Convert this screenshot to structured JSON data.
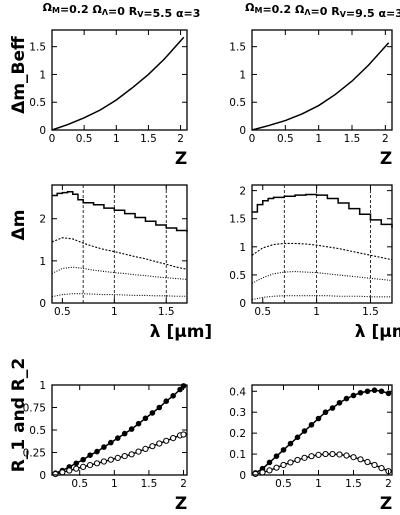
{
  "figure": {
    "row_ylabels": [
      "Δm_Beff",
      "Δm",
      "R_1 and R_2"
    ]
  },
  "chart_data": [
    {
      "id": "top-left",
      "type": "line",
      "title": "Ω_M=0.2 Ω_Λ=0 R_V=5.5 α=3",
      "xlabel": "Z",
      "ylabel": "Δm_Beff",
      "xlim": [
        0,
        2.1
      ],
      "ylim": [
        0,
        1.8
      ],
      "xticks": [
        0,
        0.5,
        1,
        1.5,
        2
      ],
      "xticklabels": [
        "0",
        "0.5",
        "1",
        "1.5",
        "2"
      ],
      "yticks": [
        0,
        0.5,
        1,
        1.5
      ],
      "yticklabels": [
        "0",
        "0.5",
        "1",
        "1.5"
      ],
      "series": [
        {
          "style": "solid",
          "x": [
            0,
            0.25,
            0.5,
            0.75,
            1.0,
            1.25,
            1.5,
            1.75,
            2.05
          ],
          "y": [
            0,
            0.1,
            0.22,
            0.36,
            0.54,
            0.76,
            1.0,
            1.28,
            1.67
          ]
        }
      ]
    },
    {
      "id": "top-right",
      "type": "line",
      "title": "Ω_M=0.2 Ω_Λ=0 R_V=9.5 α=3",
      "xlabel": "Z",
      "ylabel": "",
      "xlim": [
        0,
        2.1
      ],
      "ylim": [
        0,
        1.8
      ],
      "xticks": [
        0,
        0.5,
        1,
        1.5,
        2
      ],
      "xticklabels": [
        "0",
        "0.5",
        "1",
        "1.5",
        "2"
      ],
      "yticks": [
        0,
        0.5,
        1,
        1.5
      ],
      "yticklabels": [
        "0",
        "0.5",
        "1",
        "1.5"
      ],
      "series": [
        {
          "style": "solid",
          "x": [
            0,
            0.25,
            0.5,
            0.75,
            1.0,
            1.25,
            1.5,
            1.75,
            2.05
          ],
          "y": [
            0,
            0.08,
            0.17,
            0.29,
            0.44,
            0.64,
            0.88,
            1.17,
            1.57
          ]
        }
      ]
    },
    {
      "id": "middle-left",
      "type": "line",
      "xlabel": "λ [μm]",
      "ylabel": "Δm",
      "xlim": [
        0.4,
        1.7
      ],
      "ylim": [
        0,
        2.8
      ],
      "xticks": [
        0.5,
        1,
        1.5
      ],
      "xticklabels": [
        "0.5",
        "1",
        "1.5"
      ],
      "yticks": [
        0,
        1,
        2
      ],
      "yticklabels": [
        "0",
        "1",
        "2"
      ],
      "vlines": [
        0.7,
        1.0,
        1.5
      ],
      "series": [
        {
          "style": "solid-step",
          "x": [
            0.4,
            0.45,
            0.5,
            0.55,
            0.6,
            0.65,
            0.7,
            0.8,
            0.9,
            1.0,
            1.1,
            1.2,
            1.3,
            1.4,
            1.5,
            1.6,
            1.7
          ],
          "y": [
            2.55,
            2.6,
            2.62,
            2.64,
            2.58,
            2.45,
            2.38,
            2.33,
            2.25,
            2.2,
            2.12,
            2.03,
            1.94,
            1.85,
            1.78,
            1.72,
            1.68
          ]
        },
        {
          "style": "dashed",
          "x": [
            0.4,
            0.5,
            0.6,
            0.7,
            0.8,
            0.9,
            1.0,
            1.1,
            1.2,
            1.3,
            1.4,
            1.5,
            1.6,
            1.7
          ],
          "y": [
            1.45,
            1.55,
            1.52,
            1.42,
            1.34,
            1.27,
            1.22,
            1.16,
            1.1,
            1.05,
            0.98,
            0.92,
            0.85,
            0.8
          ]
        },
        {
          "style": "dotted",
          "x": [
            0.4,
            0.5,
            0.6,
            0.7,
            0.8,
            0.9,
            1.0,
            1.1,
            1.2,
            1.3,
            1.4,
            1.5,
            1.6,
            1.7
          ],
          "y": [
            0.7,
            0.82,
            0.85,
            0.82,
            0.78,
            0.75,
            0.72,
            0.7,
            0.67,
            0.65,
            0.62,
            0.6,
            0.58,
            0.56
          ]
        },
        {
          "style": "dotted",
          "x": [
            0.4,
            0.5,
            0.6,
            0.7,
            0.8,
            0.9,
            1.0,
            1.1,
            1.2,
            1.3,
            1.4,
            1.5,
            1.6,
            1.7
          ],
          "y": [
            0.15,
            0.2,
            0.22,
            0.22,
            0.21,
            0.2,
            0.2,
            0.19,
            0.18,
            0.18,
            0.17,
            0.17,
            0.16,
            0.16
          ]
        }
      ]
    },
    {
      "id": "middle-right",
      "type": "line",
      "xlabel": "λ [μm]",
      "ylabel": "",
      "xlim": [
        0.4,
        1.7
      ],
      "ylim": [
        0,
        2.1
      ],
      "xticks": [
        0.5,
        1,
        1.5
      ],
      "xticklabels": [
        "0.5",
        "1",
        "1.5"
      ],
      "yticks": [
        0,
        0.5,
        1,
        1.5,
        2
      ],
      "yticklabels": [
        "0",
        "0.5",
        "1",
        "1.5",
        "2"
      ],
      "vlines": [
        0.7,
        1.0,
        1.5
      ],
      "series": [
        {
          "style": "solid-step",
          "x": [
            0.4,
            0.45,
            0.5,
            0.55,
            0.6,
            0.7,
            0.8,
            0.9,
            1.0,
            1.1,
            1.2,
            1.3,
            1.4,
            1.5,
            1.6,
            1.7
          ],
          "y": [
            1.62,
            1.75,
            1.82,
            1.86,
            1.88,
            1.9,
            1.92,
            1.93,
            1.92,
            1.86,
            1.78,
            1.68,
            1.58,
            1.48,
            1.4,
            1.34
          ]
        },
        {
          "style": "dashed",
          "x": [
            0.4,
            0.5,
            0.6,
            0.7,
            0.8,
            0.9,
            1.0,
            1.1,
            1.2,
            1.3,
            1.4,
            1.5,
            1.6,
            1.7
          ],
          "y": [
            0.85,
            0.98,
            1.04,
            1.06,
            1.06,
            1.05,
            1.03,
            1.0,
            0.97,
            0.93,
            0.89,
            0.85,
            0.81,
            0.77
          ]
        },
        {
          "style": "dotted",
          "x": [
            0.4,
            0.5,
            0.6,
            0.7,
            0.8,
            0.9,
            1.0,
            1.1,
            1.2,
            1.3,
            1.4,
            1.5,
            1.6,
            1.7
          ],
          "y": [
            0.35,
            0.45,
            0.52,
            0.55,
            0.56,
            0.55,
            0.54,
            0.52,
            0.5,
            0.48,
            0.46,
            0.44,
            0.42,
            0.4
          ]
        },
        {
          "style": "dotted",
          "x": [
            0.4,
            0.5,
            0.6,
            0.7,
            0.8,
            0.9,
            1.0,
            1.1,
            1.2,
            1.3,
            1.4,
            1.5,
            1.6,
            1.7
          ],
          "y": [
            0.06,
            0.1,
            0.12,
            0.13,
            0.13,
            0.13,
            0.13,
            0.13,
            0.12,
            0.12,
            0.12,
            0.11,
            0.11,
            0.11
          ]
        }
      ]
    },
    {
      "id": "bottom-left",
      "type": "line",
      "xlabel": "Z",
      "ylabel": "R_1 and R_2",
      "xlim": [
        0.1,
        2.05
      ],
      "ylim": [
        0,
        1.0
      ],
      "xticks": [
        0.5,
        1,
        1.5,
        2
      ],
      "xticklabels": [
        "0.5",
        "1",
        "1.5",
        "2"
      ],
      "yticks": [
        0,
        0.25,
        0.5,
        0.75,
        1
      ],
      "yticklabels": [
        "0",
        "0.25",
        "0.5",
        "0.75",
        "1"
      ],
      "series": [
        {
          "style": "solid",
          "marker": "filled",
          "x": [
            0.15,
            0.25,
            0.35,
            0.45,
            0.55,
            0.65,
            0.75,
            0.85,
            0.95,
            1.05,
            1.15,
            1.25,
            1.35,
            1.45,
            1.55,
            1.65,
            1.75,
            1.85,
            1.95,
            2.0
          ],
          "y": [
            0.02,
            0.05,
            0.09,
            0.13,
            0.17,
            0.22,
            0.26,
            0.31,
            0.36,
            0.41,
            0.46,
            0.51,
            0.57,
            0.63,
            0.69,
            0.75,
            0.82,
            0.88,
            0.95,
            0.99
          ]
        },
        {
          "style": "solid",
          "marker": "open",
          "x": [
            0.15,
            0.25,
            0.35,
            0.45,
            0.55,
            0.65,
            0.75,
            0.85,
            0.95,
            1.05,
            1.15,
            1.25,
            1.35,
            1.45,
            1.55,
            1.65,
            1.75,
            1.85,
            1.95,
            2.0
          ],
          "y": [
            0.01,
            0.03,
            0.05,
            0.07,
            0.09,
            0.11,
            0.13,
            0.15,
            0.17,
            0.19,
            0.21,
            0.23,
            0.26,
            0.29,
            0.32,
            0.35,
            0.38,
            0.41,
            0.44,
            0.45
          ]
        }
      ]
    },
    {
      "id": "bottom-right",
      "type": "line",
      "xlabel": "Z",
      "ylabel": "",
      "xlim": [
        0.05,
        2.05
      ],
      "ylim": [
        0,
        0.43
      ],
      "xticks": [
        0.5,
        1,
        1.5,
        2
      ],
      "xticklabels": [
        "0.5",
        "1",
        "1.5",
        "2"
      ],
      "yticks": [
        0,
        0.1,
        0.2,
        0.3,
        0.4
      ],
      "yticklabels": [
        "0",
        "0.1",
        "0.2",
        "0.3",
        "0.4"
      ],
      "series": [
        {
          "style": "solid",
          "marker": "filled",
          "x": [
            0.1,
            0.2,
            0.3,
            0.4,
            0.5,
            0.6,
            0.7,
            0.8,
            0.9,
            1.0,
            1.1,
            1.2,
            1.3,
            1.4,
            1.5,
            1.6,
            1.7,
            1.8,
            1.9,
            2.0
          ],
          "y": [
            0.01,
            0.03,
            0.06,
            0.09,
            0.12,
            0.15,
            0.18,
            0.21,
            0.24,
            0.27,
            0.3,
            0.32,
            0.345,
            0.365,
            0.38,
            0.393,
            0.4,
            0.405,
            0.4,
            0.39
          ]
        },
        {
          "style": "solid",
          "marker": "open",
          "x": [
            0.1,
            0.2,
            0.3,
            0.4,
            0.5,
            0.6,
            0.7,
            0.8,
            0.9,
            1.0,
            1.1,
            1.2,
            1.3,
            1.4,
            1.5,
            1.6,
            1.7,
            1.8,
            1.9,
            2.0
          ],
          "y": [
            0.005,
            0.012,
            0.022,
            0.035,
            0.048,
            0.06,
            0.072,
            0.082,
            0.09,
            0.096,
            0.1,
            0.1,
            0.098,
            0.093,
            0.085,
            0.075,
            0.062,
            0.048,
            0.033,
            0.018
          ]
        }
      ]
    }
  ]
}
